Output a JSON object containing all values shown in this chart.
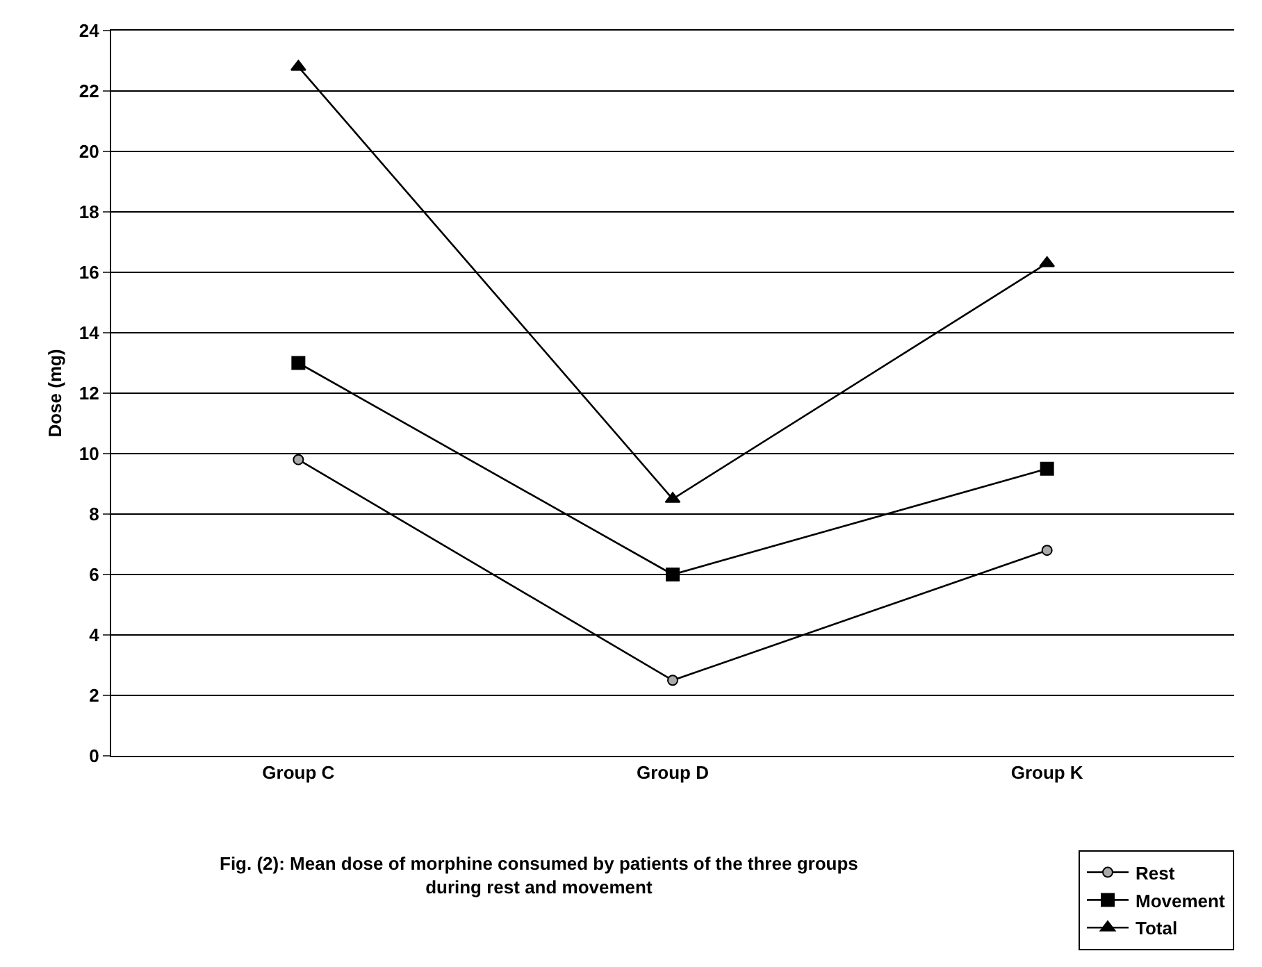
{
  "chart_data": {
    "type": "line",
    "ylabel": "Dose (mg)",
    "categories": [
      "Group C",
      "Group D",
      "Group K"
    ],
    "series": [
      {
        "name": "Rest",
        "color": "#000000",
        "marker": "circle",
        "values": [
          9.8,
          2.5,
          6.8
        ]
      },
      {
        "name": "Movement",
        "color": "#000000",
        "marker": "square",
        "values": [
          13,
          6,
          9.5
        ]
      },
      {
        "name": "Total",
        "color": "#000000",
        "marker": "triangle",
        "values": [
          22.8,
          8.5,
          16.3
        ]
      }
    ],
    "ylim": [
      0,
      24
    ],
    "yticks": [
      0,
      2,
      4,
      6,
      8,
      10,
      12,
      14,
      16,
      18,
      20,
      22,
      24
    ],
    "grid": "y",
    "legend": "bottom right",
    "line_style": "solid",
    "annotations": [
      "Fig. (2): Mean dose of morphine consumed by patients of the three groups during rest and movement"
    ]
  }
}
